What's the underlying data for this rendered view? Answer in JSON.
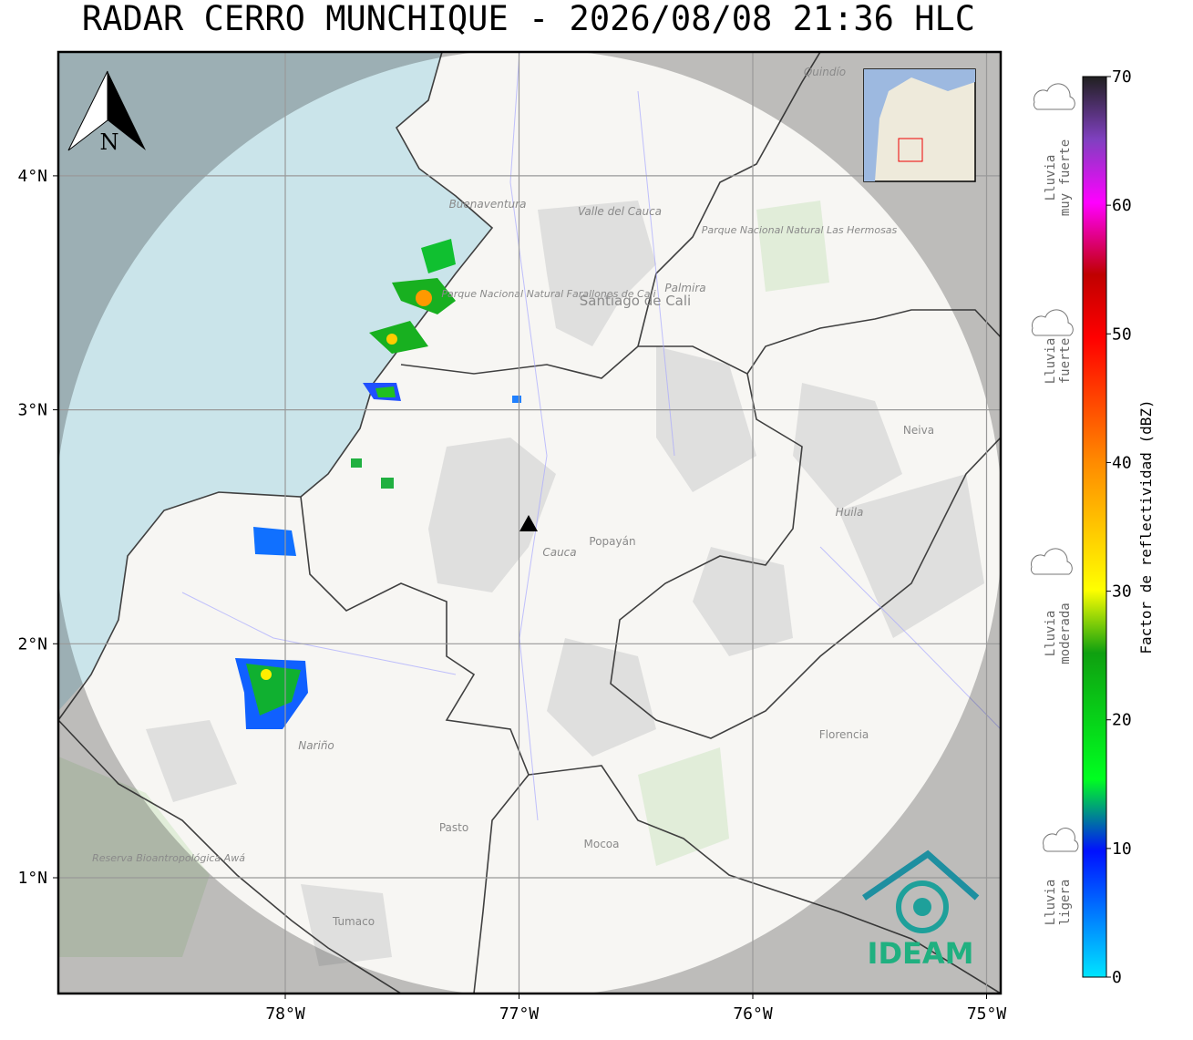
{
  "header": {
    "title": "RADAR CERRO MUNCHIQUE - 2026/08/08 21:36 HLC"
  },
  "map": {
    "north_label": "N",
    "lon_ticks": [
      {
        "value": -78,
        "label": "78°W"
      },
      {
        "value": -77,
        "label": "77°W"
      },
      {
        "value": -76,
        "label": "76°W"
      },
      {
        "value": -75,
        "label": "75°W"
      }
    ],
    "lat_ticks": [
      {
        "value": 4,
        "label": "4°N"
      },
      {
        "value": 3,
        "label": "3°N"
      },
      {
        "value": 2,
        "label": "2°N"
      },
      {
        "value": 1,
        "label": "1°N"
      }
    ],
    "places": [
      "Buenaventura",
      "Valle del Cauca",
      "Parque Nacional Natural Farallones de Cali",
      "Santiago de Cali",
      "Palmira",
      "Parque Nacional Natural Las Hermosas",
      "Quindío",
      "Neiva",
      "Huila",
      "Cauca",
      "Popayán",
      "Nariño",
      "Pasto",
      "Mocoa",
      "Florencia",
      "Tumaco",
      "Reserva Bioantropológica Awá"
    ],
    "logo": "IDEAM"
  },
  "colorbar": {
    "label": "Factor de reflectividad (dBZ)",
    "lim": [
      0,
      70
    ],
    "ticks": [
      0,
      10,
      20,
      30,
      40,
      50,
      60,
      70
    ]
  },
  "rain_legend": [
    {
      "lines": [
        "Lluvia",
        "muy fuerte"
      ]
    },
    {
      "lines": [
        "Lluvia",
        "fuerte"
      ]
    },
    {
      "lines": [
        "Lluvia",
        "moderada"
      ]
    },
    {
      "lines": [
        "Lluvia",
        "ligera"
      ]
    }
  ]
}
